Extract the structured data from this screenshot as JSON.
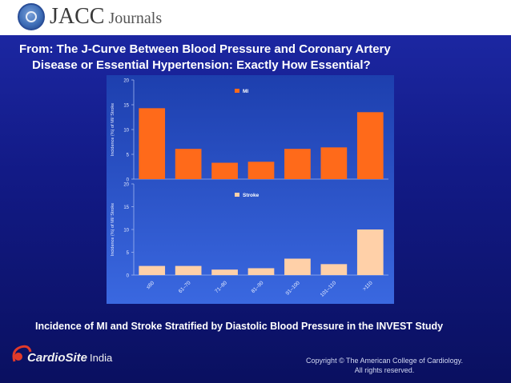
{
  "header": {
    "logo_main": "JACC",
    "logo_sub": " Journals"
  },
  "title": {
    "line1": "From: The J-Curve Between Blood Pressure and Coronary Artery",
    "line2": "Disease or Essential Hypertension: Exactly How Essential?"
  },
  "caption": "Incidence of MI and Stroke Stratified by Diastolic Blood Pressure in the INVEST Study",
  "footer": {
    "brand": "CardioSite",
    "brand_suffix": "India",
    "copyright_line1": "Copyright © The American College of Cardiology.",
    "copyright_line2": "All rights reserved."
  },
  "colors": {
    "mi_bar": "#ff6a1a",
    "stroke_bar": "#ffd0a8",
    "panel_background": "#2a56d0"
  },
  "chart_data": [
    {
      "type": "bar",
      "legend": "MI",
      "ylabel": "Incidence (%) of MI/ Stroke",
      "ylim": [
        0,
        20
      ],
      "yticks": [
        0,
        5,
        10,
        15,
        20
      ],
      "categories": [
        "≤60",
        "61-70",
        "71-80",
        "81-90",
        "91-100",
        "101-110",
        ">110"
      ],
      "values": [
        14.3,
        6.1,
        3.3,
        3.5,
        6.1,
        6.4,
        13.5
      ]
    },
    {
      "type": "bar",
      "legend": "Stroke",
      "ylabel": "Incidence (%) of MI/ Stroke",
      "ylim": [
        0,
        20
      ],
      "yticks": [
        0,
        5,
        10,
        15,
        20
      ],
      "categories": [
        "≤60",
        "61-70",
        "71-80",
        "81-90",
        "91-100",
        "101-110",
        ">110"
      ],
      "xtick_labels": [
        "≤60",
        "61–70",
        "71–80",
        "81–90",
        "91–100",
        "101–110",
        ">110"
      ],
      "values": [
        2.0,
        2.0,
        1.2,
        1.5,
        3.6,
        2.4,
        10.0
      ]
    }
  ]
}
